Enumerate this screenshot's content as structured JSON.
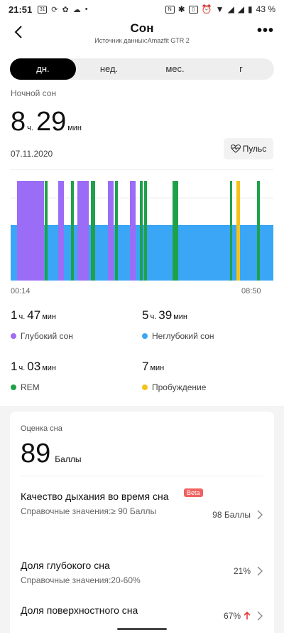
{
  "status_bar": {
    "time": "21:51",
    "icons_left": [
      "calendar-31",
      "sync",
      "fan",
      "cloud",
      "dot"
    ],
    "battery_text": "43 %",
    "icons_right": [
      "nfc",
      "bluetooth",
      "vibrate",
      "alarm",
      "wifi",
      "signal",
      "signal",
      "battery"
    ]
  },
  "header": {
    "title": "Сон",
    "subtitle": "Источник данных:Amazfit GTR 2"
  },
  "tabs": [
    {
      "label": "дн.",
      "active": true
    },
    {
      "label": "нед.",
      "active": false
    },
    {
      "label": "мес.",
      "active": false
    },
    {
      "label": "г",
      "active": false
    }
  ],
  "summary": {
    "label": "Ночной сон",
    "hours": "8",
    "hours_unit": "ч.",
    "minutes": "29",
    "minutes_unit": "мин",
    "date": "07.11.2020",
    "pulse_button": "Пульс"
  },
  "chart": {
    "start": "00:14",
    "end": "08:50",
    "colors": {
      "deep": "#9b6cf6",
      "light": "#3aa6f5",
      "rem": "#1fa14a",
      "awake": "#f5c21b"
    }
  },
  "stats": [
    {
      "n1": "1",
      "u1": "ч.",
      "n2": "47",
      "u2": "мин",
      "label": "Глубокий сон",
      "color": "#9b6cf6"
    },
    {
      "n1": "5",
      "u1": "ч.",
      "n2": "39",
      "u2": "мин",
      "label": "Неглубокий сон",
      "color": "#3aa6f5"
    },
    {
      "n1": "1",
      "u1": "ч.",
      "n2": "03",
      "u2": "мин",
      "label": "REM",
      "color": "#1fa14a"
    },
    {
      "n1": "7",
      "u1": "мин",
      "n2": "",
      "u2": "",
      "label": "Пробуждение",
      "color": "#f5c21b"
    }
  ],
  "score": {
    "label": "Оценка сна",
    "value": "89",
    "unit": "Баллы"
  },
  "rows": [
    {
      "title": "Качество дыхания во время сна",
      "badge": "Beta",
      "sub": "Справочные значения:≥ 90 Баллы",
      "value": "98 Баллы"
    },
    {
      "title": "Доля глубокого сна",
      "sub": "Справочные значения:20-60%",
      "value": "21%"
    },
    {
      "title": "Доля поверхностного сна",
      "value": "67%",
      "arrow": "up",
      "arrow_color": "#e53935"
    }
  ]
}
